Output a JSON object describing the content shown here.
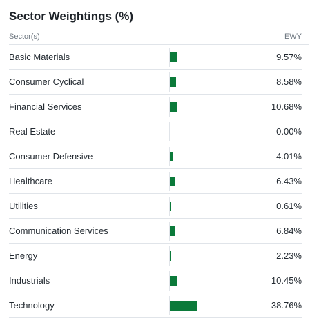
{
  "panel": {
    "title": "Sector Weightings (%)",
    "header": {
      "sector_label": "Sector(s)",
      "fund_label": "EWY"
    },
    "bar_color": "#0b7a3a",
    "rows": [
      {
        "name": "Basic Materials",
        "value": "9.57%",
        "pct": 9.57
      },
      {
        "name": "Consumer Cyclical",
        "value": "8.58%",
        "pct": 8.58
      },
      {
        "name": "Financial Services",
        "value": "10.68%",
        "pct": 10.68
      },
      {
        "name": "Real Estate",
        "value": "0.00%",
        "pct": 0.0
      },
      {
        "name": "Consumer Defensive",
        "value": "4.01%",
        "pct": 4.01
      },
      {
        "name": "Healthcare",
        "value": "6.43%",
        "pct": 6.43
      },
      {
        "name": "Utilities",
        "value": "0.61%",
        "pct": 0.61
      },
      {
        "name": "Communication Services",
        "value": "6.84%",
        "pct": 6.84
      },
      {
        "name": "Energy",
        "value": "2.23%",
        "pct": 2.23
      },
      {
        "name": "Industrials",
        "value": "10.45%",
        "pct": 10.45
      },
      {
        "name": "Technology",
        "value": "38.76%",
        "pct": 38.76
      }
    ]
  }
}
